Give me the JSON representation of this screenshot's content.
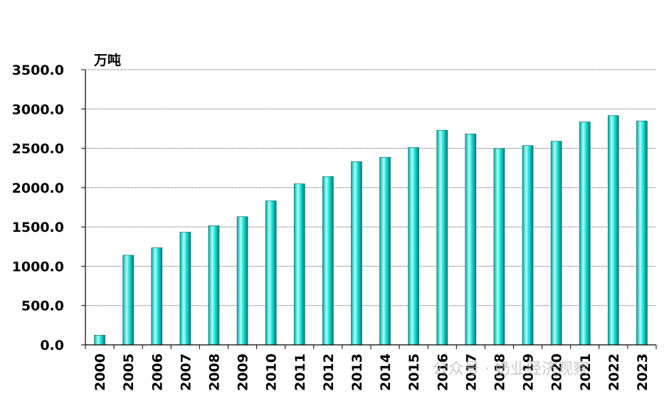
{
  "chart_data": {
    "type": "bar",
    "unit_label": "万吨",
    "categories": [
      "2000",
      "2005",
      "2006",
      "2007",
      "2008",
      "2009",
      "2010",
      "2011",
      "2012",
      "2013",
      "2014",
      "2015",
      "2016",
      "2017",
      "2018",
      "2019",
      "2020",
      "2021",
      "2022",
      "2023"
    ],
    "values": [
      123,
      1140,
      1235,
      1433,
      1515,
      1630,
      1832,
      2048,
      2140,
      2330,
      2386,
      2510,
      2730,
      2683,
      2497,
      2535,
      2590,
      2836,
      2916,
      2848
    ],
    "ylim": [
      0,
      3500
    ],
    "yticks": [
      "0.0",
      "500.0",
      "1000.0",
      "1500.0",
      "2000.0",
      "2500.0",
      "3000.0",
      "3500.0"
    ],
    "grid": "horizontal-dotted",
    "colors": {
      "bar_light": "#ccfffa",
      "bar_mid": "#00e0d6",
      "bar_dark": "#007a78"
    }
  },
  "watermark": {
    "text": "公众号 · 奶业经济观察"
  }
}
